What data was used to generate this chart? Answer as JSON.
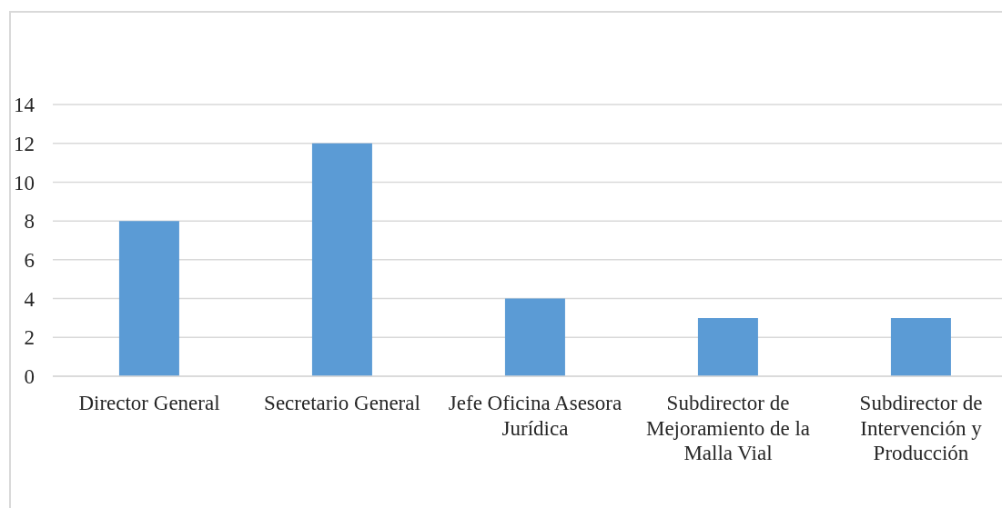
{
  "chart_data": {
    "type": "bar",
    "categories": [
      "Director General",
      "Secretario General",
      "Jefe Oficina Asesora Jurídica",
      "Subdirector de Mejoramiento de la Malla Vial",
      "Subdirector de Intervención y Producción"
    ],
    "values": [
      8,
      12,
      4,
      3,
      3
    ],
    "color": "#5b9bd5",
    "ylim": [
      0,
      14
    ],
    "yticks": [
      0,
      2,
      4,
      6,
      8,
      10,
      12,
      14
    ],
    "grid": "y"
  }
}
